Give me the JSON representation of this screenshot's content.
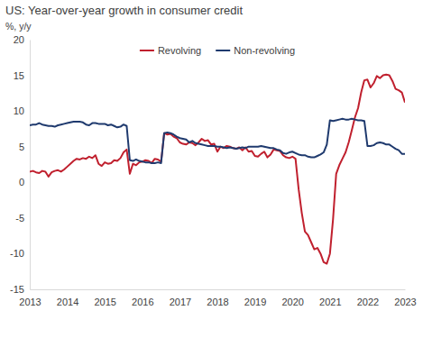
{
  "chart_data": {
    "type": "line",
    "title": "US: Year-over-year growth in consumer credit",
    "ylabel": "%, y/y",
    "x": [
      2013,
      2013.083,
      2013.167,
      2013.25,
      2013.333,
      2013.417,
      2013.5,
      2013.583,
      2013.667,
      2013.75,
      2013.833,
      2013.917,
      2014,
      2014.083,
      2014.167,
      2014.25,
      2014.333,
      2014.417,
      2014.5,
      2014.583,
      2014.667,
      2014.75,
      2014.833,
      2014.917,
      2015,
      2015.083,
      2015.167,
      2015.25,
      2015.333,
      2015.417,
      2015.5,
      2015.583,
      2015.667,
      2015.75,
      2015.833,
      2015.917,
      2016,
      2016.083,
      2016.167,
      2016.25,
      2016.333,
      2016.417,
      2016.5,
      2016.583,
      2016.667,
      2016.75,
      2016.833,
      2016.917,
      2017,
      2017.083,
      2017.167,
      2017.25,
      2017.333,
      2017.417,
      2017.5,
      2017.583,
      2017.667,
      2017.75,
      2017.833,
      2017.917,
      2018,
      2018.083,
      2018.167,
      2018.25,
      2018.333,
      2018.417,
      2018.5,
      2018.583,
      2018.667,
      2018.75,
      2018.833,
      2018.917,
      2019,
      2019.083,
      2019.167,
      2019.25,
      2019.333,
      2019.417,
      2019.5,
      2019.583,
      2019.667,
      2019.75,
      2019.833,
      2019.917,
      2020,
      2020.083,
      2020.167,
      2020.25,
      2020.333,
      2020.417,
      2020.5,
      2020.583,
      2020.667,
      2020.75,
      2020.833,
      2020.917,
      2021,
      2021.083,
      2021.167,
      2021.25,
      2021.333,
      2021.417,
      2021.5,
      2021.583,
      2021.667,
      2021.75,
      2021.833,
      2021.917,
      2022,
      2022.083,
      2022.167,
      2022.25,
      2022.333,
      2022.417,
      2022.5,
      2022.583,
      2022.667,
      2022.75,
      2022.833,
      2022.917,
      2023
    ],
    "series": [
      {
        "name": "Revolving",
        "color": "#c0202e",
        "values": [
          1.5,
          1.6,
          1.4,
          1.3,
          1.6,
          1.5,
          0.8,
          1.4,
          1.6,
          1.7,
          1.5,
          1.8,
          2.2,
          2.6,
          3.0,
          3.3,
          3.2,
          3.4,
          3.3,
          3.6,
          3.4,
          3.8,
          2.6,
          2.3,
          2.8,
          2.6,
          2.7,
          3.1,
          3.0,
          3.4,
          4.2,
          4.6,
          1.2,
          2.6,
          2.4,
          2.8,
          2.9,
          3.1,
          3.0,
          2.7,
          3.3,
          3.2,
          2.9,
          6.9,
          6.7,
          6.8,
          6.4,
          6.2,
          5.6,
          5.4,
          5.3,
          5.6,
          5.5,
          5.2,
          5.6,
          6.1,
          5.8,
          5.9,
          5.3,
          5.4,
          4.3,
          5.0,
          4.8,
          5.1,
          5.0,
          4.8,
          4.7,
          4.9,
          4.5,
          4.9,
          4.3,
          4.4,
          3.7,
          3.6,
          4.0,
          4.3,
          3.5,
          3.9,
          4.6,
          4.5,
          4.4,
          3.8,
          3.5,
          3.4,
          3.6,
          3.3,
          -1.0,
          -4.3,
          -6.9,
          -7.4,
          -8.4,
          -9.4,
          -9.2,
          -10.0,
          -11.2,
          -11.4,
          -10.0,
          -5.2,
          1.2,
          2.4,
          3.3,
          4.2,
          5.6,
          7.3,
          9.1,
          10.4,
          12.6,
          14.3,
          14.4,
          13.3,
          13.9,
          14.9,
          14.6,
          15.0,
          15.1,
          15.0,
          14.2,
          13.1,
          12.9,
          12.6,
          11.2
        ]
      },
      {
        "name": "Non-revolving",
        "color": "#1f3a6e",
        "values": [
          8.0,
          8.1,
          8.1,
          8.3,
          8.1,
          8.0,
          7.9,
          7.9,
          7.8,
          8.0,
          8.1,
          8.2,
          8.3,
          8.4,
          8.5,
          8.5,
          8.5,
          8.4,
          8.1,
          8.0,
          8.3,
          8.3,
          8.2,
          8.2,
          8.2,
          8.0,
          8.1,
          7.9,
          7.7,
          7.8,
          8.1,
          7.9,
          3.1,
          3.0,
          3.2,
          3.0,
          2.9,
          2.8,
          2.8,
          2.7,
          2.7,
          2.8,
          2.7,
          6.9,
          7.0,
          6.9,
          6.7,
          6.4,
          6.2,
          6.1,
          6.0,
          5.6,
          5.8,
          5.5,
          5.4,
          5.3,
          5.2,
          5.1,
          5.1,
          5.1,
          5.0,
          5.0,
          4.9,
          4.8,
          4.9,
          4.8,
          4.7,
          4.8,
          4.9,
          4.8,
          5.0,
          5.0,
          5.0,
          5.0,
          5.1,
          5.0,
          4.9,
          4.8,
          4.8,
          4.6,
          4.5,
          4.1,
          4.0,
          4.2,
          4.3,
          4.1,
          3.9,
          3.8,
          3.8,
          3.6,
          3.5,
          3.5,
          3.7,
          3.9,
          4.2,
          5.3,
          8.7,
          8.6,
          8.7,
          8.8,
          8.9,
          8.8,
          8.8,
          8.9,
          8.8,
          8.7,
          8.7,
          8.6,
          5.1,
          5.1,
          5.2,
          5.5,
          5.6,
          5.5,
          5.3,
          5.3,
          5.0,
          4.7,
          4.5,
          4.0,
          4.0
        ]
      }
    ],
    "xlim": [
      2013,
      2023
    ],
    "xticks": [
      2013,
      2014,
      2015,
      2016,
      2017,
      2018,
      2019,
      2020,
      2021,
      2022,
      2023
    ],
    "ylim": [
      -15,
      20
    ],
    "yticks": [
      -15,
      -10,
      -5,
      0,
      5,
      10,
      15,
      20
    ],
    "grid": false,
    "legend": "top"
  }
}
